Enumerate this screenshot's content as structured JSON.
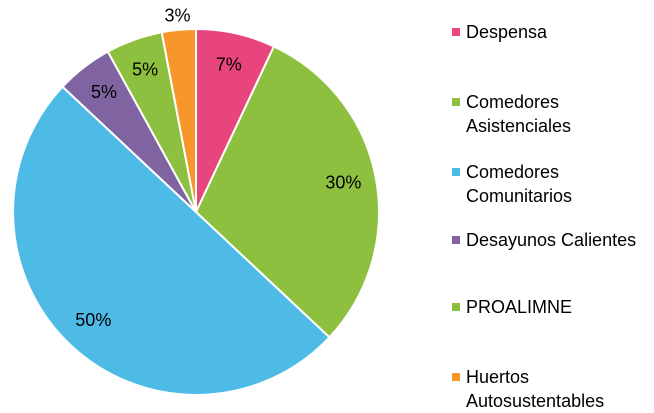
{
  "chart_data": {
    "type": "pie",
    "categories": [
      "Despensa",
      "Comedores Asistenciales",
      "Comedores Comunitarios",
      "Desayunos Calientes",
      "PROALIMNE",
      "Huertos Autosustentables"
    ],
    "values": [
      7,
      30,
      50,
      5,
      5,
      3
    ],
    "value_labels": [
      "7%",
      "30%",
      "50%",
      "5%",
      "5%",
      "3%"
    ],
    "colors": [
      "#e8457f",
      "#8dc03f",
      "#4dbbe6",
      "#8064a2",
      "#8dc03f",
      "#f7962a"
    ],
    "legend": "right"
  }
}
